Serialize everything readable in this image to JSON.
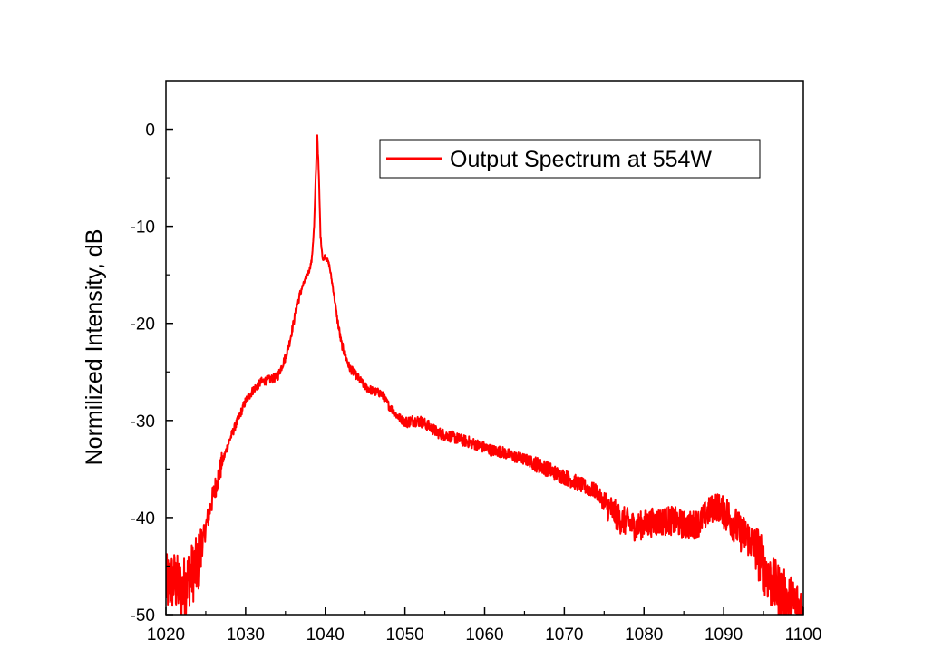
{
  "chart_data": {
    "type": "line",
    "xlabel": "",
    "ylabel": "Normilized Intensity, dB",
    "xlim": [
      1020,
      1100
    ],
    "ylim": [
      -50,
      5
    ],
    "xticks": [
      1020,
      1030,
      1040,
      1050,
      1060,
      1070,
      1080,
      1090,
      1100
    ],
    "yticks": [
      -50,
      -40,
      -30,
      -20,
      -10,
      0
    ],
    "grid": false,
    "legend_position": "top-right",
    "series": [
      {
        "name": "Output Spectrum at 554W",
        "color": "#ff0000",
        "x": [
          1020,
          1021,
          1022,
          1023,
          1024,
          1025,
          1026,
          1027,
          1028,
          1029,
          1030,
          1031,
          1032,
          1033,
          1034,
          1035,
          1035.5,
          1036,
          1036.5,
          1037,
          1037.5,
          1038,
          1038.3,
          1038.6,
          1038.8,
          1039,
          1039.2,
          1039.4,
          1039.7,
          1040,
          1040.5,
          1041,
          1041.5,
          1042,
          1043,
          1044,
          1045,
          1046,
          1047,
          1048,
          1049,
          1050,
          1051,
          1052,
          1053,
          1054,
          1055,
          1056,
          1057,
          1058,
          1059,
          1060,
          1061,
          1062,
          1063,
          1064,
          1065,
          1066,
          1067,
          1068,
          1069,
          1070,
          1071,
          1072,
          1073,
          1074,
          1075,
          1076,
          1077,
          1078,
          1079,
          1080,
          1081,
          1082,
          1083,
          1084,
          1085,
          1086,
          1087,
          1088,
          1089,
          1090,
          1091,
          1092,
          1093,
          1094,
          1095,
          1096,
          1097,
          1098,
          1099,
          1100
        ],
        "y": [
          -47,
          -46.5,
          -47.5,
          -46,
          -45,
          -41,
          -37.5,
          -34.5,
          -32,
          -30,
          -28,
          -26.8,
          -26,
          -25.8,
          -25.5,
          -23.5,
          -22,
          -20,
          -18,
          -16.5,
          -15.5,
          -14.5,
          -13.5,
          -10,
          -5,
          -0.5,
          -5,
          -11,
          -13.5,
          -13,
          -14,
          -16.5,
          -19.5,
          -22,
          -24.5,
          -25.5,
          -26.5,
          -27,
          -27.2,
          -28.5,
          -29.5,
          -30.2,
          -30,
          -30.1,
          -30.6,
          -31.2,
          -31.5,
          -31.7,
          -32,
          -32.2,
          -32.5,
          -32.8,
          -33.1,
          -33.2,
          -33.5,
          -33.8,
          -34,
          -34.3,
          -34.7,
          -35,
          -35.5,
          -35.8,
          -36.2,
          -36.6,
          -37,
          -37.3,
          -38.5,
          -39.3,
          -40.2,
          -40.5,
          -41,
          -40.7,
          -40.5,
          -40.4,
          -40.3,
          -40.4,
          -40.8,
          -40.8,
          -40.5,
          -39.5,
          -38.8,
          -39.3,
          -40.2,
          -41.5,
          -42,
          -43,
          -45,
          -46.8,
          -47.5,
          -48.5,
          -49,
          -49.5
        ]
      }
    ]
  }
}
